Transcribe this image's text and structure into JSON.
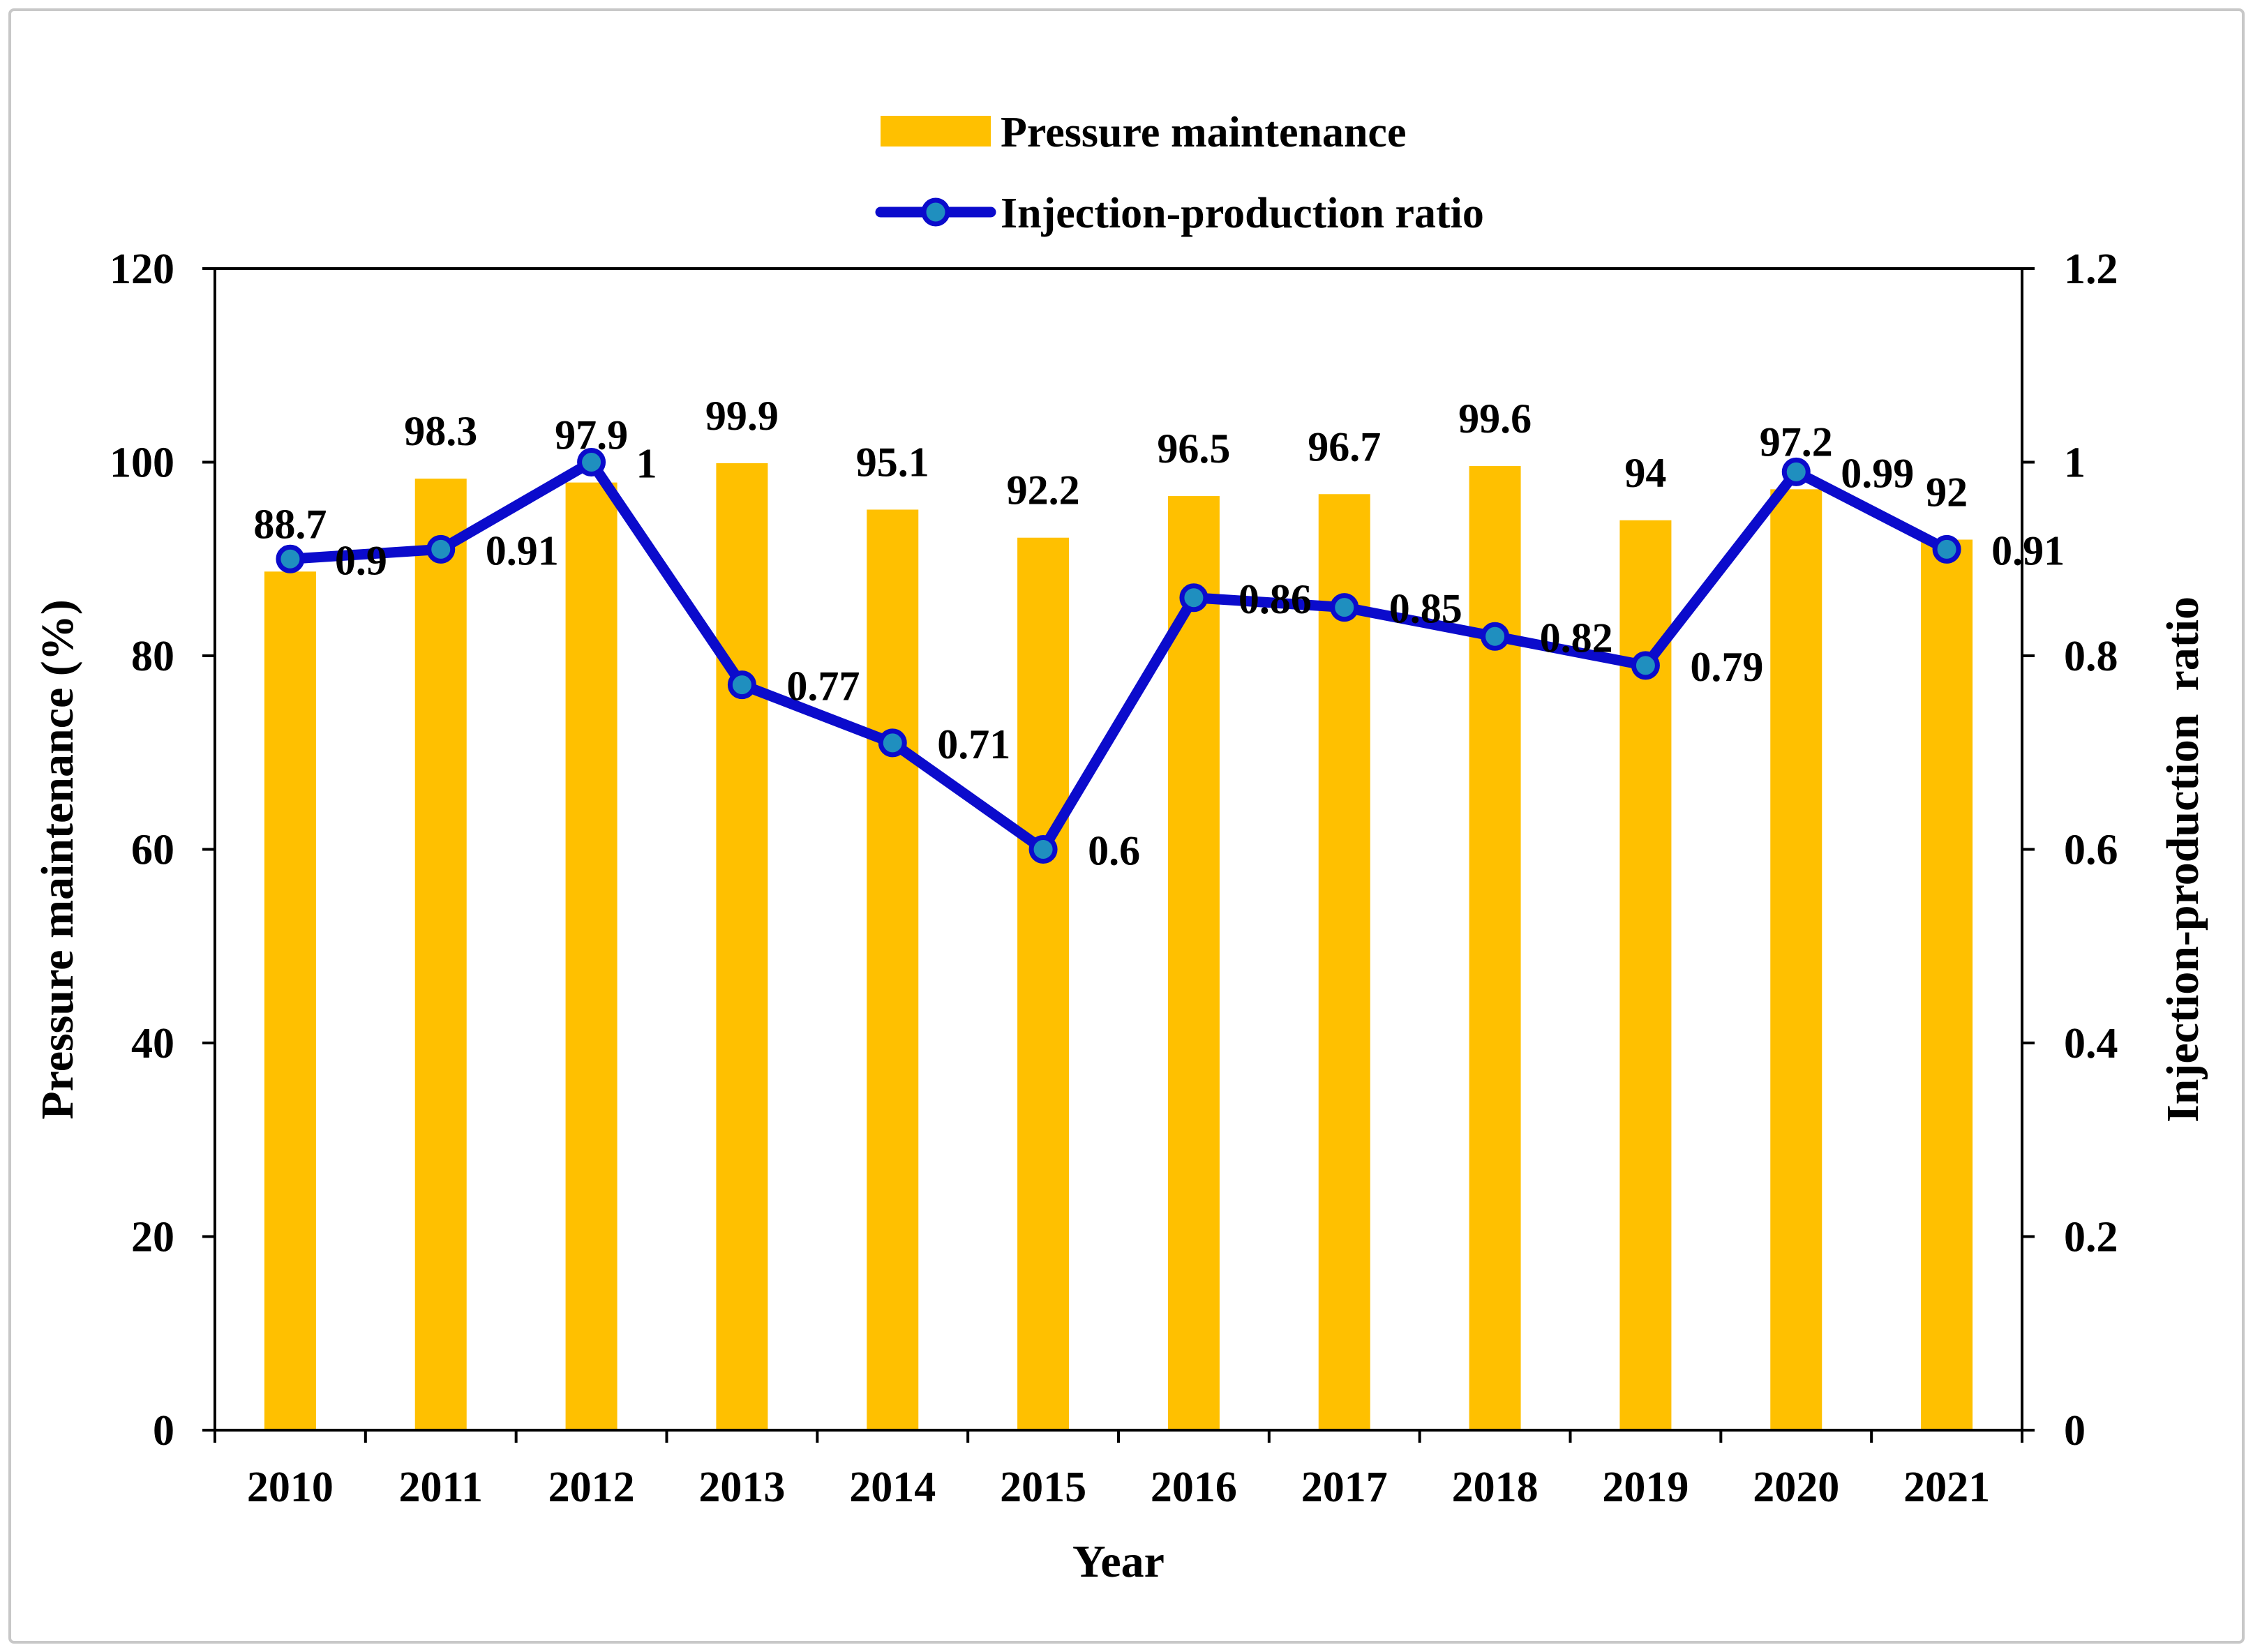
{
  "chart_data": {
    "type": "bar+line",
    "categories": [
      "2010",
      "2011",
      "2012",
      "2013",
      "2014",
      "2015",
      "2016",
      "2017",
      "2018",
      "2019",
      "2020",
      "2021"
    ],
    "series": [
      {
        "name": "Pressure maintenance",
        "type": "bar",
        "axis": "left",
        "color": "#FFC000",
        "values": [
          88.7,
          98.3,
          97.9,
          99.9,
          95.1,
          92.2,
          96.5,
          96.7,
          99.6,
          94,
          97.2,
          92
        ],
        "labels": [
          "88.7",
          "98.3",
          "97.9",
          "99.9",
          "95.1",
          "92.2",
          "96.5",
          "96.7",
          "99.6",
          "94",
          "97.2",
          "92"
        ]
      },
      {
        "name": "Injection-production ratio",
        "type": "line",
        "axis": "right",
        "color": "#0B0BCC",
        "marker_color": "#1F8FBF",
        "values": [
          0.9,
          0.91,
          1,
          0.77,
          0.71,
          0.6,
          0.86,
          0.85,
          0.82,
          0.79,
          0.99,
          0.91
        ],
        "labels": [
          "0.9",
          "0.91",
          "1",
          "0.77",
          "0.71",
          "0.6",
          "0.86",
          "0.85",
          "0.82",
          "0.79",
          "0.99",
          "0.91"
        ]
      }
    ],
    "xlabel": "Year",
    "ylabel": "Pressure maintenance (%)",
    "y2label": "Injection-production  ratio",
    "ylim": [
      0,
      120
    ],
    "y2lim": [
      0,
      1.2
    ],
    "yticks": [
      "0",
      "20",
      "40",
      "60",
      "80",
      "100",
      "120"
    ],
    "y2ticks": [
      "0",
      "0.2",
      "0.4",
      "0.6",
      "0.8",
      "1",
      "1.2"
    ],
    "legend_position": "top-center",
    "grid": false
  }
}
